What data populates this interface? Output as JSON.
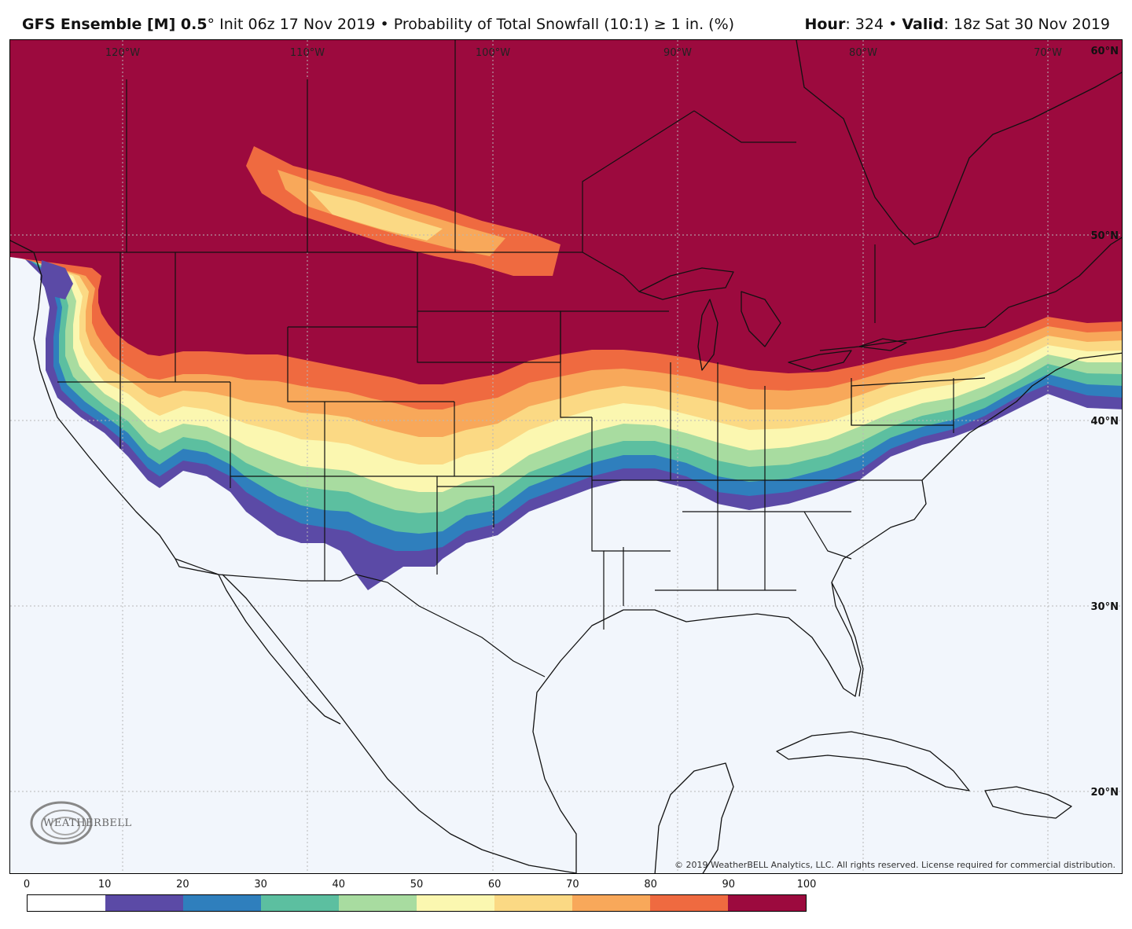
{
  "header": {
    "model": "GFS Ensemble [M] 0.5",
    "degree": "°",
    "init": "Init 06z 17 Nov 2019",
    "bullet": "•",
    "product": "Probability of Total Snowfall (10:1) ≥ 1 in. (%)",
    "hour_label": "Hour",
    "hour_value": ": 324",
    "valid_label": "Valid",
    "valid_value": ": 18z Sat 30 Nov 2019"
  },
  "map": {
    "lon_labels": [
      "120°W",
      "110°W",
      "100°W",
      "90°W",
      "80°W",
      "70°W"
    ],
    "lat_labels": [
      "60°N",
      "50°N",
      "40°N",
      "30°N",
      "20°N"
    ],
    "copyright": "© 2019 WeatherBELL Analytics, LLC. All rights reserved. License required for commercial distribution.",
    "logo_text": "WEATHERBELL"
  },
  "legend": {
    "ticks": [
      "0",
      "10",
      "20",
      "30",
      "40",
      "50",
      "60",
      "70",
      "80",
      "90",
      "100"
    ],
    "colors": [
      "#ffffff",
      "#5b4aa6",
      "#2f7fbd",
      "#5cbfa0",
      "#a8dca0",
      "#fbf7b0",
      "#fbd984",
      "#f8a85a",
      "#ef6a40",
      "#9c0a3e"
    ]
  }
}
